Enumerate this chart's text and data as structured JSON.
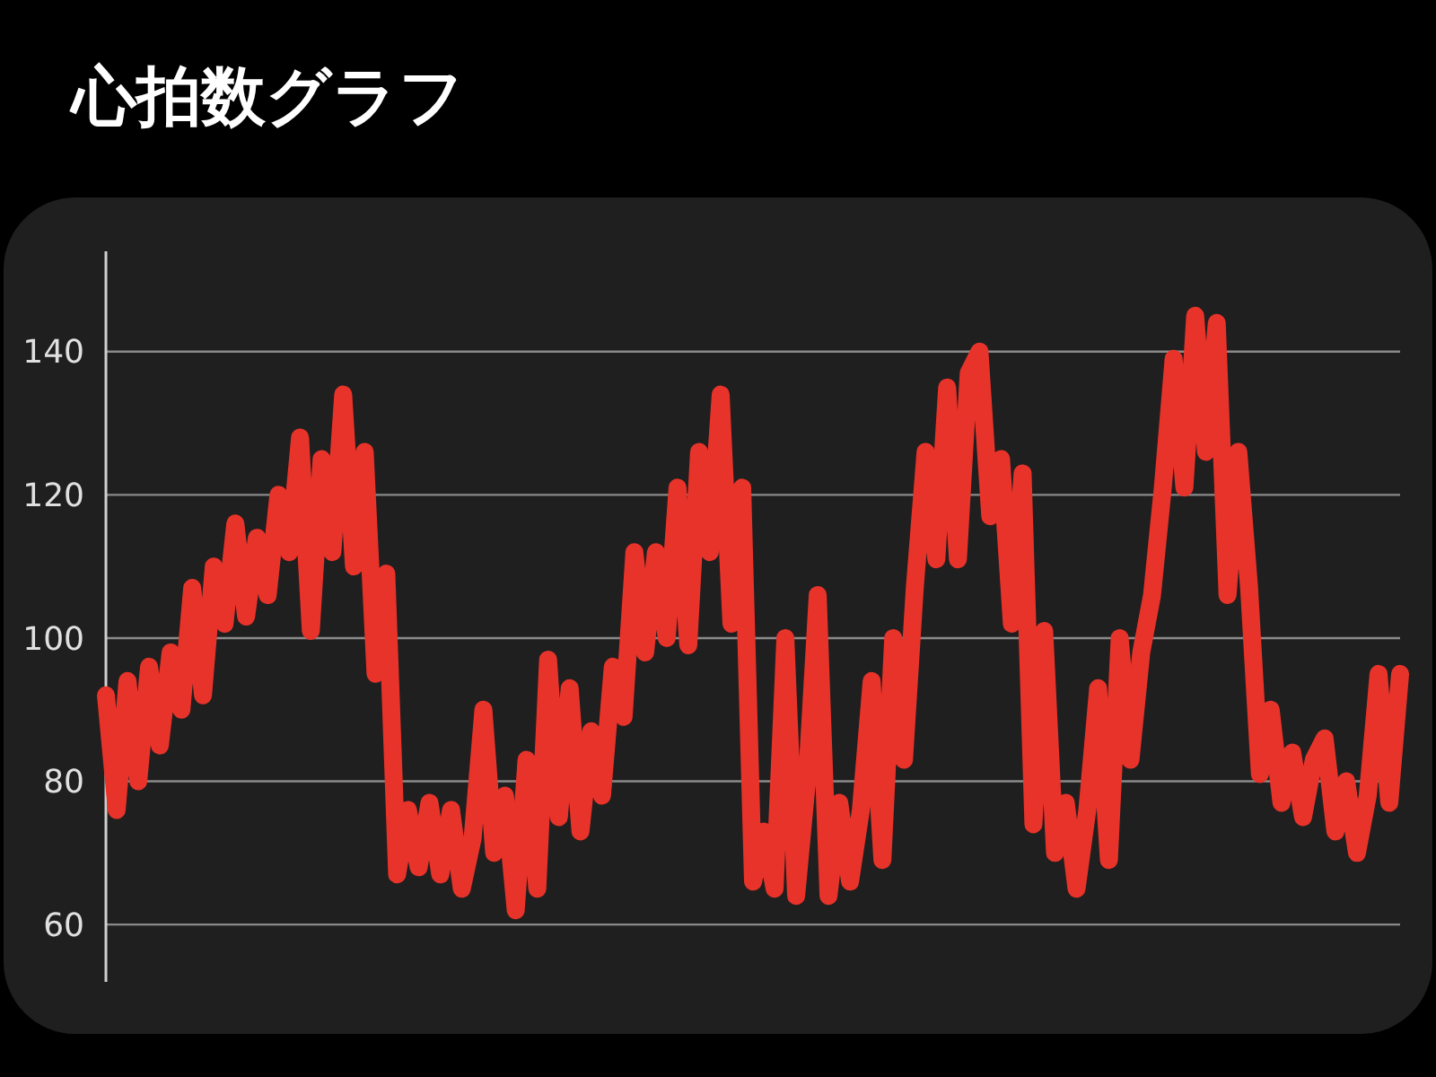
{
  "chart_data": {
    "type": "line",
    "title": "心拍数グラフ",
    "categories": [
      null,
      null,
      null,
      null,
      null,
      null,
      null,
      null,
      null,
      null,
      null,
      null,
      null,
      null,
      null,
      null,
      null,
      null,
      null,
      null,
      null,
      null,
      null,
      null,
      null,
      null,
      null,
      null,
      null,
      null,
      null,
      null,
      null,
      null,
      null,
      null,
      null,
      null,
      null,
      null,
      null,
      null,
      null,
      null,
      null,
      null,
      null,
      null,
      null,
      null,
      null,
      null,
      null,
      null,
      null,
      null,
      null,
      null,
      null,
      null,
      null,
      null,
      null,
      null,
      null,
      null,
      null,
      null,
      null,
      null,
      null,
      null,
      null,
      null,
      null,
      null,
      null,
      null,
      null,
      null,
      null,
      null,
      null,
      null,
      null,
      null,
      null,
      null,
      null,
      null,
      null,
      null,
      null,
      null,
      null,
      null,
      null,
      null,
      null,
      null,
      null,
      null,
      null,
      null,
      null,
      null,
      null,
      null,
      null,
      null,
      null,
      null,
      null,
      null,
      null,
      null,
      null,
      null,
      null,
      null,
      null
    ],
    "series": [
      {
        "color": "#e8332a",
        "values": [
          92,
          76,
          94,
          80,
          96,
          85,
          98,
          90,
          107,
          92,
          110,
          102,
          116,
          103,
          114,
          106,
          120,
          112,
          128,
          101,
          125,
          112,
          134,
          110,
          126,
          95,
          109,
          67,
          76,
          68,
          77,
          67,
          76,
          65,
          72,
          90,
          70,
          78,
          62,
          83,
          65,
          97,
          75,
          93,
          73,
          87,
          78,
          96,
          89,
          112,
          98,
          112,
          100,
          121,
          99,
          126,
          112,
          134,
          102,
          121,
          66,
          73,
          65,
          100,
          64,
          80,
          106,
          64,
          77,
          66,
          76,
          94,
          69,
          100,
          83,
          107,
          126,
          111,
          135,
          111,
          137,
          140,
          117,
          125,
          102,
          123,
          74,
          101,
          70,
          77,
          65,
          76,
          93,
          69,
          100,
          83,
          98,
          106,
          121,
          139,
          121,
          145,
          126,
          144,
          106,
          126,
          107,
          81,
          90,
          77,
          84,
          75,
          83,
          86,
          73,
          80,
          70,
          78,
          95,
          77,
          95
        ]
      }
    ],
    "ylim": [
      52,
      154
    ],
    "yticks": [
      60,
      80,
      100,
      120,
      140
    ],
    "grid": "y",
    "tick_labels": "y",
    "line_style": "solid"
  }
}
